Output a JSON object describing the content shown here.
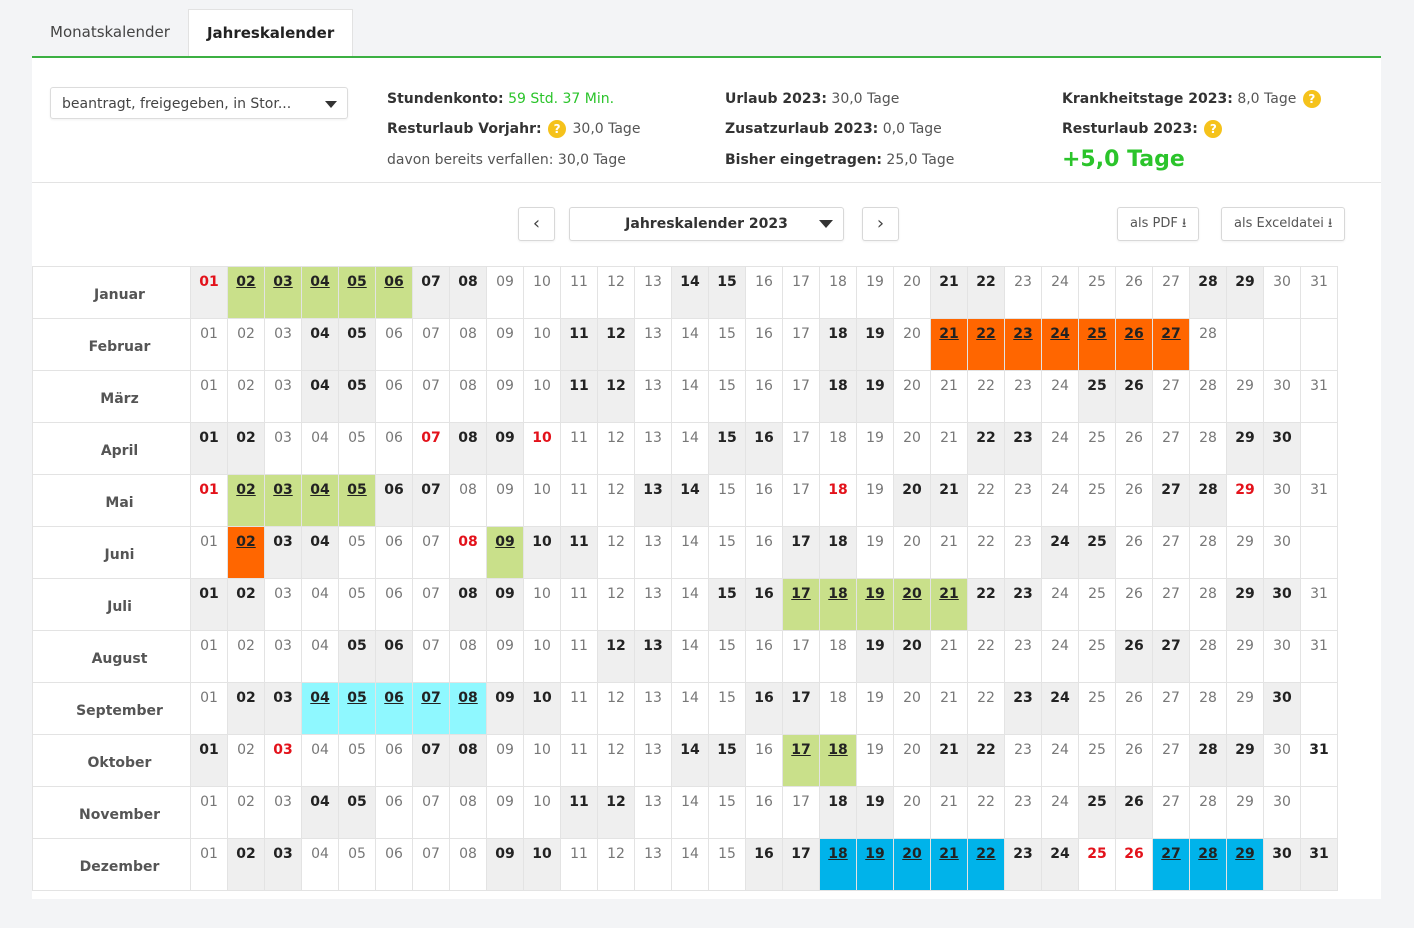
{
  "tabs": [
    {
      "label": "Monatskalender",
      "active": false
    },
    {
      "label": "Jahreskalender",
      "active": true
    }
  ],
  "filter": {
    "value": "beantragt, freigegeben, in Stor..."
  },
  "stats": {
    "stundenkonto_label": "Stundenkonto:",
    "stundenkonto_value": "59 Std. 37 Min.",
    "resturlaub_vorjahr_label": "Resturlaub Vorjahr:",
    "resturlaub_vorjahr_value": "30,0 Tage",
    "verfallen_text": "davon bereits verfallen: 30,0 Tage",
    "urlaub_label": "Urlaub 2023:",
    "urlaub_value": "30,0 Tage",
    "zusatzurlaub_label": "Zusatzurlaub 2023:",
    "zusatzurlaub_value": "0,0 Tage",
    "eingetragen_label": "Bisher eingetragen:",
    "eingetragen_value": "25,0 Tage",
    "krank_label": "Krankheitstage 2023:",
    "krank_value": "8,0 Tage",
    "resturlaub_label": "Resturlaub 2023:",
    "resturlaub_value": "+5,0 Tage",
    "help_glyph": "?"
  },
  "toolbar": {
    "prev_glyph": "‹",
    "next_glyph": "›",
    "year_label": "Jahreskalender 2023",
    "pdf_label": "als PDF",
    "excel_label": "als Exceldatei",
    "download_glyph": "⭳"
  },
  "colors": {
    "accent": "#3cb043",
    "holiday_text": "#e3121b",
    "vacation_green": "#c9e08a",
    "vacation_orange": "#ff6600",
    "vacation_cyan": "#8ff8ff",
    "vacation_blue": "#00b3ea",
    "weekend_grey": "#efefef"
  },
  "calendar": {
    "months": [
      {
        "name": "Januar",
        "days": 31,
        "bold": [
          7,
          8,
          14,
          15,
          21,
          22,
          28,
          29
        ],
        "holidays": [
          1
        ],
        "marks": {
          "g": [
            2,
            3,
            4,
            5,
            6
          ]
        }
      },
      {
        "name": "Februar",
        "days": 28,
        "bold": [
          4,
          5,
          11,
          12,
          18,
          19
        ],
        "holidays": [],
        "marks": {
          "o": [
            21,
            22,
            23,
            24,
            25,
            26,
            27
          ]
        }
      },
      {
        "name": "März",
        "days": 31,
        "bold": [
          4,
          5,
          11,
          12,
          18,
          19,
          25,
          26
        ],
        "holidays": [],
        "marks": {}
      },
      {
        "name": "April",
        "days": 30,
        "bold": [
          1,
          2,
          8,
          9,
          15,
          16,
          22,
          23,
          29,
          30
        ],
        "holidays": [
          7,
          10
        ],
        "marks": {}
      },
      {
        "name": "Mai",
        "days": 31,
        "bold": [
          6,
          7,
          13,
          14,
          20,
          21,
          27,
          28
        ],
        "holidays": [
          1,
          18,
          29
        ],
        "marks": {
          "g": [
            2,
            3,
            4,
            5
          ]
        }
      },
      {
        "name": "Juni",
        "days": 30,
        "bold": [
          3,
          4,
          10,
          11,
          17,
          18,
          24,
          25
        ],
        "holidays": [
          8
        ],
        "marks": {
          "o": [
            2
          ],
          "g": [
            9
          ]
        }
      },
      {
        "name": "Juli",
        "days": 31,
        "bold": [
          1,
          2,
          8,
          9,
          15,
          16,
          22,
          23,
          29,
          30
        ],
        "holidays": [],
        "marks": {
          "g": [
            17,
            18,
            19,
            20,
            21
          ]
        }
      },
      {
        "name": "August",
        "days": 31,
        "bold": [
          5,
          6,
          12,
          13,
          19,
          20,
          26,
          27
        ],
        "holidays": [],
        "marks": {}
      },
      {
        "name": "September",
        "days": 30,
        "bold": [
          2,
          3,
          9,
          10,
          16,
          17,
          23,
          24,
          30
        ],
        "holidays": [],
        "marks": {
          "c": [
            4,
            5,
            6,
            7,
            8
          ]
        }
      },
      {
        "name": "Oktober",
        "days": 31,
        "bold": [
          1,
          7,
          8,
          14,
          15,
          21,
          22,
          28,
          29,
          31
        ],
        "holidays": [
          3
        ],
        "marks": {
          "g": [
            17,
            18
          ]
        }
      },
      {
        "name": "November",
        "days": 30,
        "bold": [
          4,
          5,
          11,
          12,
          18,
          19,
          25,
          26
        ],
        "holidays": [],
        "marks": {}
      },
      {
        "name": "Dezember",
        "days": 31,
        "bold": [
          2,
          3,
          9,
          10,
          16,
          17,
          23,
          24,
          30,
          31
        ],
        "holidays": [
          25,
          26
        ],
        "marks": {
          "b": [
            18,
            19,
            20,
            21,
            22,
            27,
            28,
            29
          ]
        }
      }
    ],
    "weekend_cols": {
      "Januar": [
        1,
        7,
        8,
        14,
        15,
        21,
        22,
        28,
        29
      ],
      "Februar": [
        4,
        5,
        11,
        12,
        18,
        19,
        25,
        26
      ],
      "März": [
        4,
        5,
        11,
        12,
        18,
        19,
        25,
        26
      ],
      "April": [
        1,
        2,
        8,
        9,
        15,
        16,
        22,
        23,
        29,
        30
      ],
      "Mai": [
        6,
        7,
        13,
        14,
        20,
        21,
        27,
        28
      ],
      "Juni": [
        3,
        4,
        10,
        11,
        17,
        18,
        24,
        25
      ],
      "Juli": [
        1,
        2,
        8,
        9,
        15,
        16,
        22,
        23,
        29,
        30
      ],
      "August": [
        5,
        6,
        12,
        13,
        19,
        20,
        26,
        27
      ],
      "September": [
        2,
        3,
        9,
        10,
        16,
        17,
        23,
        24,
        30
      ],
      "Oktober": [
        1,
        7,
        8,
        14,
        15,
        21,
        22,
        28,
        29
      ],
      "November": [
        4,
        5,
        11,
        12,
        18,
        19,
        25,
        26
      ],
      "Dezember": [
        2,
        3,
        9,
        10,
        16,
        17,
        23,
        24,
        30,
        31
      ]
    }
  }
}
